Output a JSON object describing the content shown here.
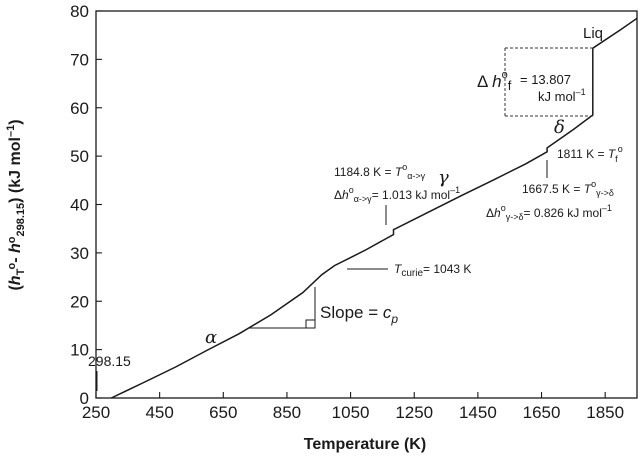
{
  "chart_data": {
    "type": "line",
    "title": "",
    "xlabel": "Temperature (K)",
    "ylabel": "(hT°- h°298.15) (kJ mol⁻¹)",
    "xlim": [
      250,
      1950
    ],
    "ylim": [
      0,
      80
    ],
    "x_ticks": [
      250,
      450,
      650,
      850,
      1050,
      1250,
      1450,
      1650,
      1850
    ],
    "y_ticks": [
      0,
      10,
      20,
      30,
      40,
      50,
      60,
      70,
      80
    ],
    "grid": false,
    "series": [
      {
        "segments": [
          {
            "x": [
              298.15,
              400,
              500,
              600,
              700,
              800,
              900,
              960,
              1000,
              1043,
              1100,
              1184.8
            ],
            "y": [
              0,
              3.2,
              6.4,
              9.9,
              13.3,
              17.2,
              21.8,
              25.5,
              27.4,
              28.8,
              30.7,
              33.8
            ]
          },
          {
            "x": [
              1184.8,
              1300,
              1400,
              1500,
              1600,
              1667.5
            ],
            "y": [
              34.8,
              38.6,
              41.9,
              45.1,
              48.4,
              50.9
            ]
          },
          {
            "x": [
              1667.5,
              1750,
              1811
            ],
            "y": [
              51.7,
              55.5,
              58.5
            ]
          },
          {
            "x": [
              1811,
              1900,
              1950
            ],
            "y": [
              72.3,
              76.2,
              78.5
            ]
          }
        ]
      }
    ],
    "annotations": {
      "start_label": "298.15",
      "alpha": "α",
      "gamma": "γ",
      "delta": "δ",
      "liq": "Liq",
      "curie": "= 1043 K",
      "slope": "Slope =",
      "alpha_gamma_temp": "1184.8 K =",
      "alpha_gamma_dh": "= 1.013 kJ mol",
      "gamma_delta_temp": "1667.5 K =",
      "gamma_delta_dh": "= 0.826 kJ mol",
      "fusion_temp": "1811 K =",
      "fusion_dh_value": "= 13.807",
      "fusion_dh_unit": "kJ mol"
    }
  }
}
